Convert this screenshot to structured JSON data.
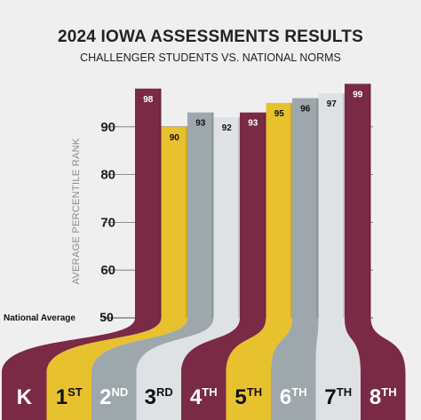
{
  "title": "2024 IOWA ASSESSMENTS RESULTS",
  "subtitle": "CHALLENGER STUDENTS VS. NATIONAL NORMS",
  "colors": {
    "maroon": "#7b2a45",
    "gold": "#e8c12e",
    "gray": "#9ea7ab",
    "light": "#dfe2e4",
    "background": "#efefef",
    "grid": "#7a6a6a"
  },
  "chart_data": {
    "type": "bar",
    "categories": [
      "K",
      "1ST",
      "2ND",
      "3RD",
      "4TH",
      "5TH",
      "6TH",
      "7TH",
      "8TH"
    ],
    "category_labels": [
      {
        "main": "K",
        "sup": ""
      },
      {
        "main": "1",
        "sup": "ST"
      },
      {
        "main": "2",
        "sup": "ND"
      },
      {
        "main": "3",
        "sup": "RD"
      },
      {
        "main": "4",
        "sup": "TH"
      },
      {
        "main": "5",
        "sup": "TH"
      },
      {
        "main": "6",
        "sup": "TH"
      },
      {
        "main": "7",
        "sup": "TH"
      },
      {
        "main": "8",
        "sup": "TH"
      }
    ],
    "values": [
      98,
      90,
      93,
      92,
      93,
      95,
      96,
      97,
      99
    ],
    "bar_colors": [
      "maroon",
      "gold",
      "gray",
      "light",
      "maroon",
      "gold",
      "gray",
      "light",
      "maroon"
    ],
    "ylabel": "AVERAGE PERCENTILE RANK",
    "yticks": [
      50,
      60,
      70,
      80,
      90
    ],
    "ylim": [
      50,
      100
    ],
    "baseline_label": "National Average",
    "grid": true
  }
}
